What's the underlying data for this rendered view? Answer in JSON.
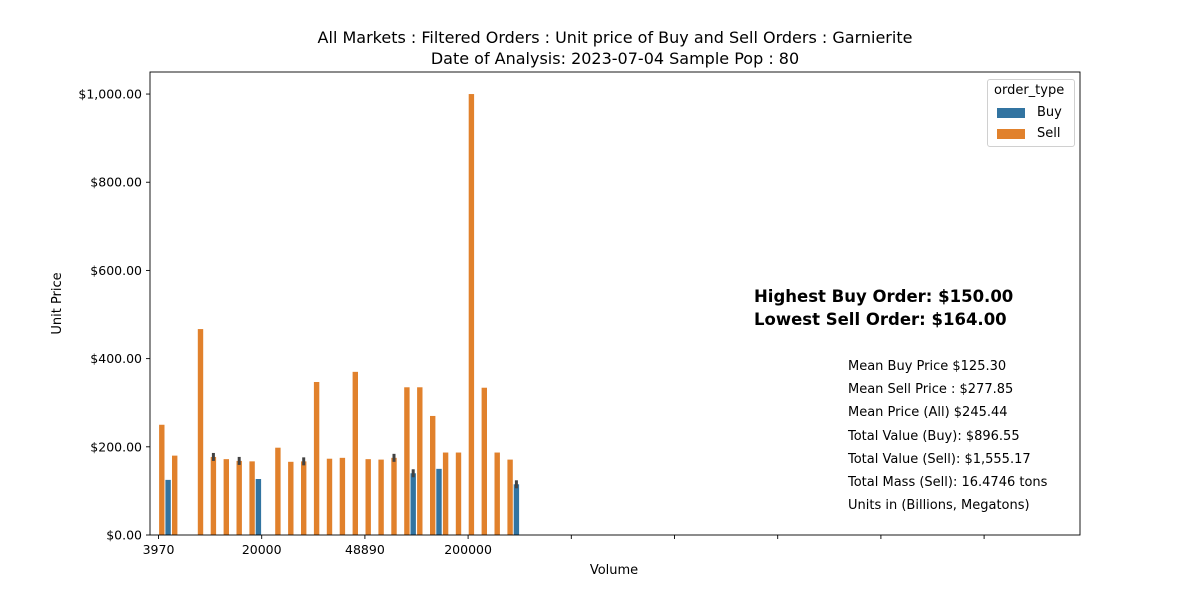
{
  "chart_data": {
    "type": "bar",
    "title": "All Markets : Filtered Orders : Unit price of Buy and Sell Orders : Garnierite",
    "subtitle": "Date of Analysis: 2023-07-04 Sample Pop : 80",
    "xlabel": "Volume",
    "ylabel": "Unit Price",
    "ylim": [
      0,
      1050
    ],
    "yticks": [
      0,
      200,
      400,
      600,
      800,
      1000
    ],
    "ytick_labels": [
      "$0.00",
      "$200.00",
      "$400.00",
      "$600.00",
      "$800.00",
      "$1,000.00"
    ],
    "category_count": 36,
    "xtick_labels": [
      {
        "category_index": 0,
        "label": "3970"
      },
      {
        "category_index": 8,
        "label": "20000"
      },
      {
        "category_index": 16,
        "label": "48890"
      },
      {
        "category_index": 24,
        "label": "200000"
      },
      {
        "category_index": 32,
        "label": ""
      },
      {
        "category_index": 40,
        "label": ""
      },
      {
        "category_index": 48,
        "label": ""
      },
      {
        "category_index": 56,
        "label": ""
      },
      {
        "category_index": 64,
        "label": ""
      },
      {
        "category_index": 72,
        "label": ""
      }
    ],
    "grid": false,
    "legend": {
      "title": "order_type",
      "placement": "top-right"
    },
    "series": [
      {
        "name": "Buy",
        "color": "#3274a1",
        "values": [
          null,
          125,
          null,
          null,
          null,
          null,
          null,
          null,
          127,
          null,
          null,
          null,
          null,
          null,
          null,
          null,
          null,
          null,
          null,
          null,
          140,
          null,
          150,
          null,
          null,
          null,
          null,
          null,
          115,
          null,
          null,
          null,
          null,
          null,
          null,
          null
        ]
      },
      {
        "name": "Sell",
        "color": "#e1812c",
        "values": [
          250,
          180,
          null,
          467,
          177,
          172,
          168,
          167,
          null,
          198,
          166,
          167,
          347,
          173,
          175,
          370,
          172,
          171,
          175,
          335,
          335,
          270,
          187,
          187,
          1000,
          334,
          187,
          171,
          null,
          null,
          null,
          null,
          null,
          null,
          null,
          null
        ]
      }
    ],
    "error_bar_indices": {
      "Sell": [
        4,
        6,
        11,
        18
      ],
      "Buy": [
        20,
        28
      ]
    }
  },
  "annotations": {
    "highest_buy": "Highest Buy Order: $150.00",
    "lowest_sell": "Lowest Sell Order: $164.00",
    "stats": [
      "Mean Buy Price $125.30",
      "Mean Sell Price : $277.85",
      "Mean Price (All) $245.44",
      "Total Value (Buy): $896.55",
      "Total Value (Sell): $1,555.17",
      "Total Mass (Sell): 16.4746 tons",
      "Units in (Billions, Megatons)"
    ]
  }
}
